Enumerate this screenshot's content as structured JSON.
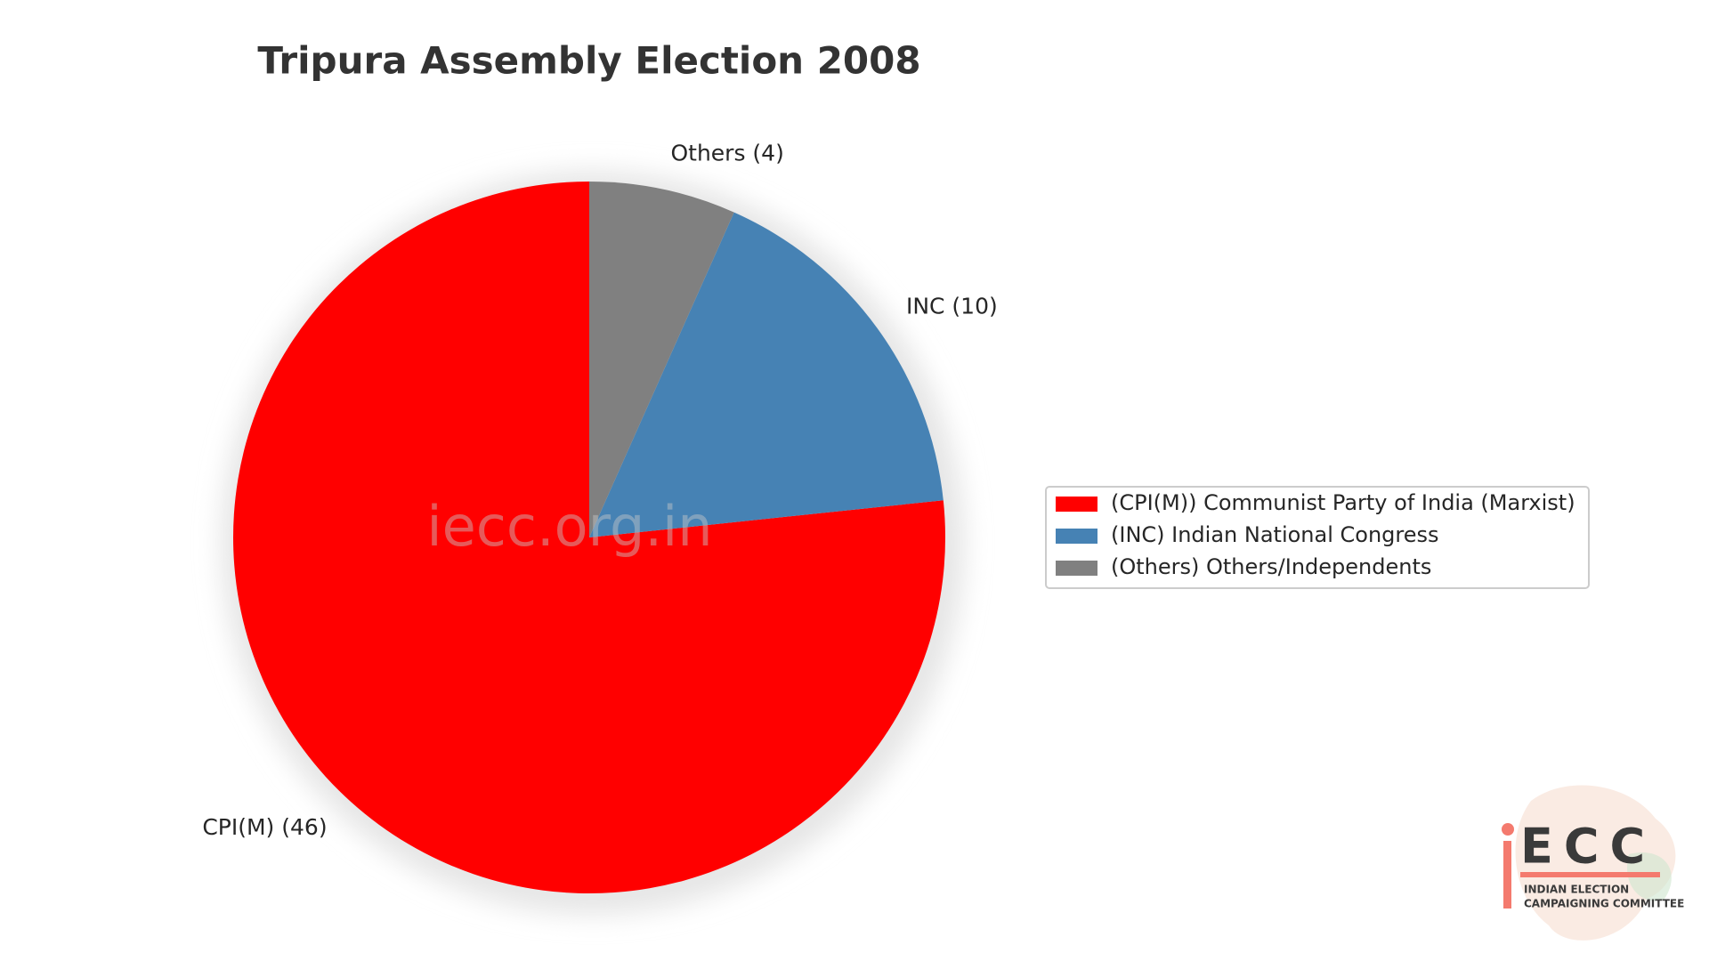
{
  "chart_data": {
    "type": "pie",
    "title": "Tripura Assembly Election 2008",
    "categories": [
      "CPI(M) (46)",
      "INC (10)",
      "Others (4)"
    ],
    "values": [
      46,
      10,
      4
    ],
    "colors": [
      "#ff0000",
      "#4682b4",
      "#808080"
    ],
    "legend_labels": [
      "(CPI(M)) Communist Party of India (Marxist)",
      "(INC) Indian National Congress",
      "(Others) Others/Independents"
    ],
    "start_angle": 90,
    "shadow": true,
    "legend": "right"
  },
  "watermark": "iecc.org.in",
  "logo": {
    "mark": "ECC",
    "line1": "INDIAN ELECTION",
    "line2": "CAMPAIGNING COMMITTEE"
  }
}
